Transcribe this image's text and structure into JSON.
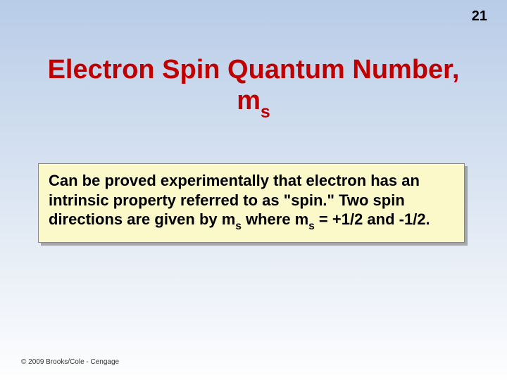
{
  "page_number": "21",
  "title": {
    "line1": "Electron Spin Quantum Number,",
    "symbol_main": "m",
    "symbol_sub": "s"
  },
  "content": {
    "p1a": "Can be proved experimentally that electron has an intrinsic property referred to as \"spin.\" Two spin directions are given by m",
    "sub1": "s",
    "p1b": " where m",
    "sub2": "s",
    "p1c": " = +1/2 and -1/2."
  },
  "copyright": "© 2009 Brooks/Cole - Cengage",
  "colors": {
    "title_color": "#c00000",
    "box_background": "#fbf9c9",
    "box_border": "#888888",
    "box_shadow": "rgba(100,100,100,0.5)",
    "gradient_top": "#b8cce8",
    "gradient_bottom": "#fefefe"
  },
  "fonts": {
    "title_family": "Comic Sans MS",
    "title_size_pt": 29,
    "body_family": "Arial",
    "body_size_pt": 17,
    "pagenum_size_pt": 15,
    "copyright_size_pt": 8
  }
}
